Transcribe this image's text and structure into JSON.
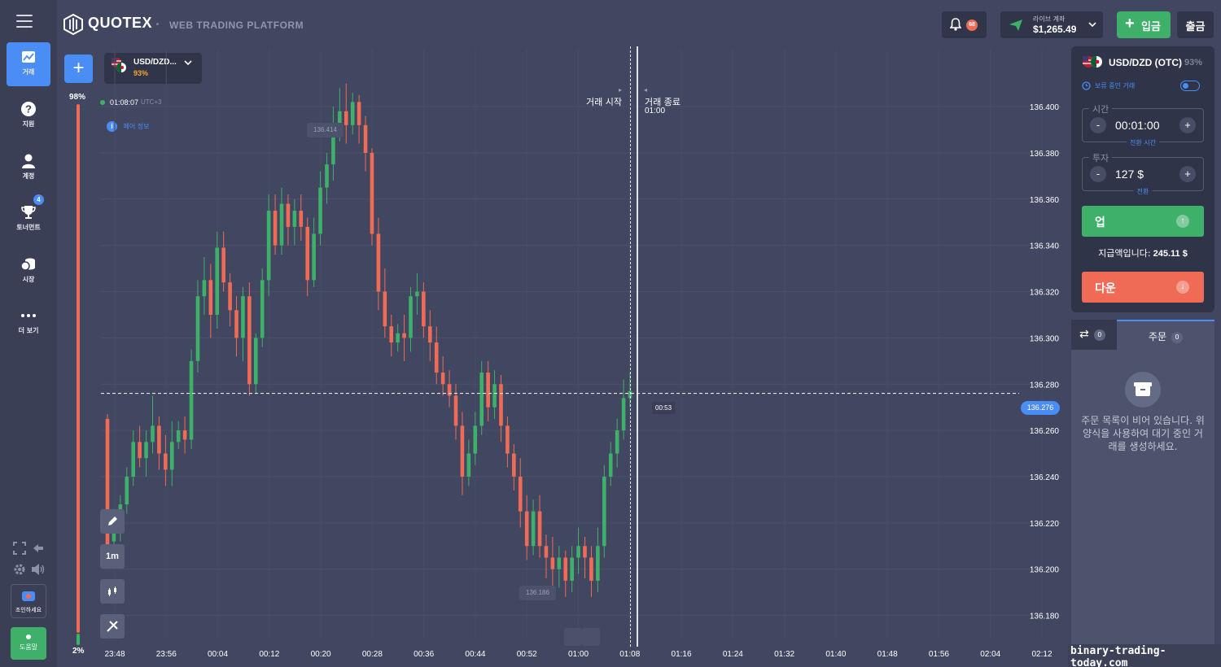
{
  "app": {
    "brand": "QUOTEX",
    "subtitle": "WEB TRADING PLATFORM"
  },
  "sidebar": {
    "items": [
      {
        "label": "거래",
        "icon": "chart-icon",
        "active": true
      },
      {
        "label": "지원",
        "icon": "help-icon",
        "active": false
      },
      {
        "label": "계정",
        "icon": "user-icon",
        "active": false
      },
      {
        "label": "토너먼트",
        "icon": "trophy-icon",
        "active": false,
        "badge": "4"
      },
      {
        "label": "시장",
        "icon": "market-icon",
        "active": false
      },
      {
        "label": "더 보기",
        "icon": "more-icon",
        "active": false
      }
    ],
    "join_label": "조인하세요",
    "help_label": "도움말"
  },
  "header": {
    "notifications_count": "68",
    "account_label": "라이브 계좌",
    "balance": "$1,265.49",
    "deposit_label": "입금",
    "withdraw_label": "출금"
  },
  "asset_tab": {
    "name": "USD/DZD...",
    "payout": "93%"
  },
  "chart_info": {
    "time": "01:08:07",
    "timezone": "UTC+3",
    "pair_info_label": "페어 정보",
    "trade_start_label": "거래 시작",
    "trade_end_label": "거래 종료",
    "trade_end_time": "01:00",
    "max_label": "136.414",
    "min_label": "136.186",
    "current_price": "136.276",
    "countdown": "00:53",
    "sentiment_top": "98%",
    "sentiment_bottom": "2%",
    "timeframe": "1m"
  },
  "chart_data": {
    "type": "candlestick",
    "x_ticks": [
      "23:48",
      "23:56",
      "00:04",
      "00:12",
      "00:20",
      "00:28",
      "00:36",
      "00:44",
      "00:52",
      "01:00",
      "01:08",
      "01:16",
      "01:24",
      "01:32",
      "01:40",
      "01:48",
      "01:56",
      "02:04",
      "02:12"
    ],
    "y_ticks": [
      "136.400",
      "136.380",
      "136.360",
      "136.340",
      "136.320",
      "136.300",
      "136.280",
      "136.260",
      "136.240",
      "136.220",
      "136.200",
      "136.180"
    ],
    "ylim": [
      136.17,
      136.425
    ],
    "candles": [
      [
        136.265,
        136.21,
        136.267,
        136.205
      ],
      [
        136.212,
        136.22,
        136.226,
        136.208
      ],
      [
        136.22,
        136.228,
        136.232,
        136.212
      ],
      [
        136.228,
        136.24,
        136.244,
        136.224
      ],
      [
        136.24,
        136.255,
        136.26,
        136.236
      ],
      [
        136.255,
        136.248,
        136.262,
        136.244
      ],
      [
        136.248,
        136.255,
        136.26,
        136.24
      ],
      [
        136.255,
        136.262,
        136.275,
        136.25
      ],
      [
        136.262,
        136.25,
        136.266,
        136.243
      ],
      [
        136.25,
        136.243,
        136.258,
        136.236
      ],
      [
        136.243,
        136.255,
        136.264,
        136.236
      ],
      [
        136.255,
        136.26,
        136.264,
        136.252
      ],
      [
        136.26,
        136.256,
        136.266,
        136.25
      ],
      [
        136.256,
        136.29,
        136.295,
        136.252
      ],
      [
        136.29,
        136.318,
        136.325,
        136.285
      ],
      [
        136.318,
        136.325,
        136.335,
        136.31
      ],
      [
        136.325,
        136.31,
        136.332,
        136.3
      ],
      [
        136.31,
        136.339,
        136.346,
        136.304
      ],
      [
        136.339,
        136.324,
        136.346,
        136.32
      ],
      [
        136.324,
        136.312,
        136.328,
        136.305
      ],
      [
        136.312,
        136.3,
        136.318,
        136.292
      ],
      [
        136.3,
        136.318,
        136.322,
        136.29
      ],
      [
        136.318,
        136.28,
        136.324,
        136.275
      ],
      [
        136.28,
        136.3,
        136.302,
        136.276
      ],
      [
        136.3,
        136.325,
        136.33,
        136.296
      ],
      [
        136.325,
        136.355,
        136.362,
        136.318
      ],
      [
        136.355,
        136.34,
        136.362,
        136.336
      ],
      [
        136.34,
        136.358,
        136.365,
        136.336
      ],
      [
        136.358,
        136.348,
        136.362,
        136.34
      ],
      [
        136.348,
        136.355,
        136.36,
        136.34
      ],
      [
        136.355,
        136.348,
        136.362,
        136.342
      ],
      [
        136.348,
        136.325,
        136.352,
        136.318
      ],
      [
        136.325,
        136.345,
        136.352,
        136.322
      ],
      [
        136.345,
        136.365,
        136.372,
        136.34
      ],
      [
        136.365,
        136.375,
        136.38,
        136.358
      ],
      [
        136.375,
        136.392,
        136.4,
        136.368
      ],
      [
        136.392,
        136.398,
        136.408,
        136.385
      ],
      [
        136.398,
        136.392,
        136.41,
        136.384
      ],
      [
        136.392,
        136.402,
        136.406,
        136.388
      ],
      [
        136.402,
        136.392,
        136.405,
        136.384
      ],
      [
        136.392,
        136.38,
        136.396,
        136.372
      ],
      [
        136.38,
        136.345,
        136.382,
        136.34
      ],
      [
        136.345,
        136.32,
        136.352,
        136.312
      ],
      [
        136.32,
        136.305,
        136.33,
        136.3
      ],
      [
        136.305,
        136.298,
        136.31,
        136.292
      ],
      [
        136.298,
        136.302,
        136.306,
        136.294
      ],
      [
        136.302,
        136.3,
        136.31,
        136.29
      ],
      [
        136.3,
        136.318,
        136.322,
        136.294
      ],
      [
        136.318,
        136.32,
        136.328,
        136.31
      ],
      [
        136.32,
        136.305,
        136.324,
        136.3
      ],
      [
        136.305,
        136.298,
        136.312,
        136.29
      ],
      [
        136.298,
        136.285,
        136.305,
        136.28
      ],
      [
        136.285,
        136.28,
        136.292,
        136.275
      ],
      [
        136.28,
        136.275,
        136.286,
        136.27
      ],
      [
        136.275,
        136.262,
        136.28,
        136.256
      ],
      [
        136.262,
        136.24,
        136.268,
        136.232
      ],
      [
        136.24,
        136.25,
        136.256,
        136.236
      ],
      [
        136.25,
        136.262,
        136.268,
        136.245
      ],
      [
        136.262,
        136.285,
        136.29,
        136.258
      ],
      [
        136.285,
        136.27,
        136.29,
        136.264
      ],
      [
        136.27,
        136.28,
        136.286,
        136.265
      ],
      [
        136.28,
        136.262,
        136.284,
        136.255
      ],
      [
        136.262,
        136.25,
        136.266,
        136.244
      ],
      [
        136.25,
        136.24,
        136.254,
        136.234
      ],
      [
        136.24,
        136.225,
        136.248,
        136.218
      ],
      [
        136.225,
        136.21,
        136.232,
        136.204
      ],
      [
        136.21,
        136.225,
        136.23,
        136.206
      ],
      [
        136.225,
        136.21,
        136.232,
        136.205
      ],
      [
        136.21,
        136.205,
        136.215,
        136.196
      ],
      [
        136.205,
        136.2,
        136.214,
        136.192
      ],
      [
        136.2,
        136.205,
        136.21,
        136.192
      ],
      [
        136.205,
        136.195,
        136.208,
        136.188
      ],
      [
        136.195,
        136.205,
        136.21,
        136.19
      ],
      [
        136.205,
        136.21,
        136.218,
        136.198
      ],
      [
        136.21,
        136.205,
        136.214,
        136.196
      ],
      [
        136.205,
        136.195,
        136.21,
        136.188
      ],
      [
        136.195,
        136.21,
        136.218,
        136.19
      ],
      [
        136.21,
        136.24,
        136.245,
        136.205
      ],
      [
        136.24,
        136.25,
        136.255,
        136.236
      ],
      [
        136.25,
        136.26,
        136.265,
        136.244
      ],
      [
        136.26,
        136.274,
        136.282,
        136.256
      ],
      [
        136.274,
        136.277,
        136.285,
        136.27
      ]
    ]
  },
  "right_panel": {
    "asset_name": "USD/DZD (OTC)",
    "asset_payout": "93%",
    "pending_label": "보류 중인 거래",
    "time_legend": "시간",
    "time_value": "00:01:00",
    "time_sub": "전환 시간",
    "invest_legend": "투자",
    "invest_value": "127 $",
    "invest_sub": "전환",
    "up_label": "업",
    "payout_text": "지급액입니다:",
    "payout_value": "245.11 $",
    "down_label": "다운"
  },
  "orders": {
    "tab1_count": "0",
    "tab2_label": "주문",
    "tab2_count": "0",
    "empty_text": "주문 목록이 비어 있습니다. 위 양식을 사용하여 대기 중인 거래를 생성하세요."
  },
  "watermark": "binary-trading-today.com",
  "colors": {
    "up": "#3fb06a",
    "down": "#ef6b56",
    "accent": "#4a8df5",
    "bg": "#414760"
  }
}
